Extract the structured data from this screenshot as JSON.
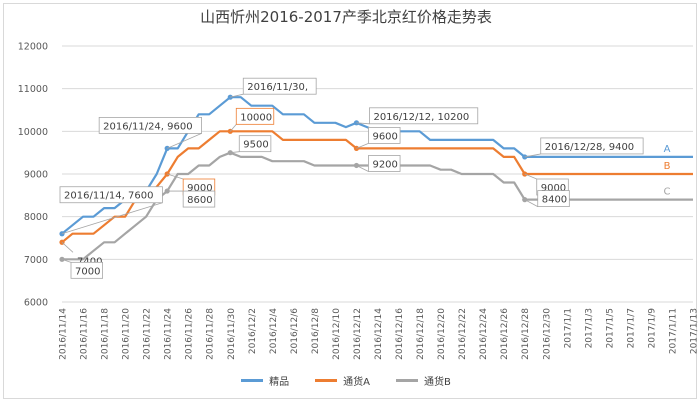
{
  "chart_data": {
    "type": "line",
    "title": "山西忻州2016-2017产季北京红价格走势表",
    "xlabel": "",
    "ylabel": "",
    "ylim": [
      6000,
      12000
    ],
    "yticks": [
      6000,
      7000,
      8000,
      9000,
      10000,
      11000,
      12000
    ],
    "grid": true,
    "legend_position": "bottom",
    "x": [
      "2016/11/14",
      "2016/11/15",
      "2016/11/16",
      "2016/11/17",
      "2016/11/18",
      "2016/11/19",
      "2016/11/20",
      "2016/11/21",
      "2016/11/22",
      "2016/11/23",
      "2016/11/24",
      "2016/11/25",
      "2016/11/26",
      "2016/11/27",
      "2016/11/28",
      "2016/11/29",
      "2016/11/30",
      "2016/12/1",
      "2016/12/2",
      "2016/12/3",
      "2016/12/4",
      "2016/12/5",
      "2016/12/6",
      "2016/12/7",
      "2016/12/8",
      "2016/12/9",
      "2016/12/10",
      "2016/12/11",
      "2016/12/12",
      "2016/12/13",
      "2016/12/14",
      "2016/12/15",
      "2016/12/16",
      "2016/12/17",
      "2016/12/18",
      "2016/12/19",
      "2016/12/20",
      "2016/12/21",
      "2016/12/22",
      "2016/12/23",
      "2016/12/24",
      "2016/12/25",
      "2016/12/26",
      "2016/12/27",
      "2016/12/28",
      "2016/12/29",
      "2016/12/30",
      "2016/12/31",
      "2017/1/1",
      "2017/1/2",
      "2017/1/3",
      "2017/1/4",
      "2017/1/5",
      "2017/1/6",
      "2017/1/7",
      "2017/1/8",
      "2017/1/9",
      "2017/1/10",
      "2017/1/11",
      "2017/1/12",
      "2017/1/13"
    ],
    "xtick_labels": [
      "2016/11/14",
      "2016/11/16",
      "2016/11/18",
      "2016/11/20",
      "2016/11/22",
      "2016/11/24",
      "2016/11/26",
      "2016/11/28",
      "2016/11/30",
      "2016/12/2",
      "2016/12/4",
      "2016/12/6",
      "2016/12/8",
      "2016/12/10",
      "2016/12/12",
      "2016/12/14",
      "2016/12/16",
      "2016/12/18",
      "2016/12/20",
      "2016/12/22",
      "2016/12/24",
      "2016/12/26",
      "2016/12/28",
      "2016/12/30",
      "2017/1/1",
      "2017/1/3",
      "2017/1/5",
      "2017/1/7",
      "2017/1/9",
      "2017/1/11",
      "2017/1/13"
    ],
    "series": [
      {
        "name": "精品",
        "end_label": "A",
        "color": "#5b9bd5",
        "values": [
          7600,
          7800,
          8000,
          8000,
          8200,
          8200,
          8400,
          8400,
          8600,
          9000,
          9600,
          9600,
          10000,
          10400,
          10400,
          10600,
          10800,
          10800,
          10600,
          10600,
          10600,
          10400,
          10400,
          10400,
          10200,
          10200,
          10200,
          10100,
          10200,
          10100,
          10000,
          10000,
          10000,
          10000,
          10000,
          9800,
          9800,
          9800,
          9800,
          9800,
          9800,
          9800,
          9600,
          9600,
          9400,
          9400,
          9400,
          9400,
          9400,
          9400,
          9400,
          9400,
          9400,
          9400,
          9400,
          9400,
          9400,
          9400,
          9400,
          9400,
          9400
        ]
      },
      {
        "name": "通货A",
        "end_label": "B",
        "color": "#ed7d31",
        "values": [
          7400,
          7600,
          7600,
          7600,
          7800,
          8000,
          8000,
          8400,
          8400,
          8700,
          9000,
          9400,
          9600,
          9600,
          9800,
          10000,
          10000,
          10000,
          10000,
          10000,
          10000,
          9800,
          9800,
          9800,
          9800,
          9800,
          9800,
          9800,
          9600,
          9600,
          9600,
          9600,
          9600,
          9600,
          9600,
          9600,
          9600,
          9600,
          9600,
          9600,
          9600,
          9600,
          9400,
          9400,
          9000,
          9000,
          9000,
          9000,
          9000,
          9000,
          9000,
          9000,
          9000,
          9000,
          9000,
          9000,
          9000,
          9000,
          9000,
          9000,
          9000
        ]
      },
      {
        "name": "通货B",
        "end_label": "C",
        "color": "#a5a5a5",
        "values": [
          7000,
          7000,
          7000,
          7200,
          7400,
          7400,
          7600,
          7800,
          8000,
          8400,
          8600,
          9000,
          9000,
          9200,
          9200,
          9400,
          9500,
          9400,
          9400,
          9400,
          9300,
          9300,
          9300,
          9300,
          9200,
          9200,
          9200,
          9200,
          9200,
          9200,
          9200,
          9200,
          9200,
          9200,
          9200,
          9200,
          9100,
          9100,
          9000,
          9000,
          9000,
          9000,
          8800,
          8800,
          8400,
          8400,
          8400,
          8400,
          8400,
          8400,
          8400,
          8400,
          8400,
          8400,
          8400,
          8400,
          8400,
          8400,
          8400,
          8400,
          8400
        ]
      }
    ],
    "annotations": [
      {
        "series": 0,
        "x": "2016/11/14",
        "text": "2016/11/14, 7600",
        "style": "box"
      },
      {
        "series": 0,
        "x": "2016/11/24",
        "text": "2016/11/24, 9600",
        "style": "box"
      },
      {
        "series": 0,
        "x": "2016/11/30",
        "text": "2016/11/30,",
        "style": "box"
      },
      {
        "series": 0,
        "x": "2016/12/12",
        "text": "2016/12/12, 10200",
        "style": "box"
      },
      {
        "series": 0,
        "x": "2016/12/28",
        "text": "2016/12/28, 9400",
        "style": "box"
      },
      {
        "series": 1,
        "x": "2016/11/14",
        "text": "7400",
        "style": "plain"
      },
      {
        "series": 1,
        "x": "2016/11/24",
        "text": "9000",
        "style": "orange-box"
      },
      {
        "series": 1,
        "x": "2016/11/30",
        "text": "10000",
        "style": "orange-box"
      },
      {
        "series": 1,
        "x": "2016/12/12",
        "text": "9600",
        "style": "box"
      },
      {
        "series": 1,
        "x": "2016/12/28",
        "text": "9000",
        "style": "box"
      },
      {
        "series": 2,
        "x": "2016/11/14",
        "text": "7000",
        "style": "box"
      },
      {
        "series": 2,
        "x": "2016/11/24",
        "text": "8600",
        "style": "box"
      },
      {
        "series": 2,
        "x": "2016/11/30",
        "text": "9500",
        "style": "box"
      },
      {
        "series": 2,
        "x": "2016/12/12",
        "text": "9200",
        "style": "box"
      },
      {
        "series": 2,
        "x": "2016/12/28",
        "text": "8400",
        "style": "box"
      }
    ]
  }
}
